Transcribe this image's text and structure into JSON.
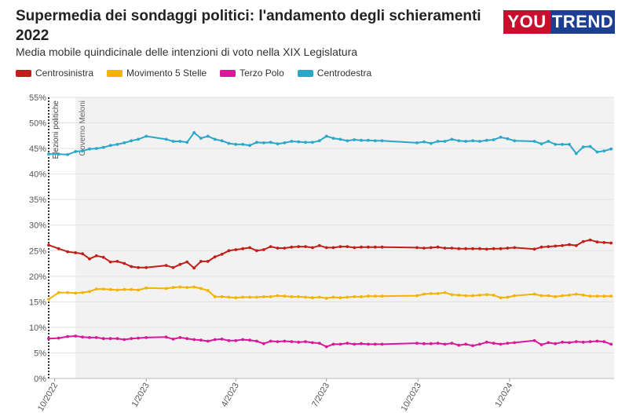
{
  "header": {
    "title": "Supermedia dei sondaggi politici: l'andamento degli schieramenti 2022",
    "subtitle": "Media mobile quindicinale delle intenzioni di voto nella XIX Legislatura",
    "logo_left": "YOU",
    "logo_right": "TREND"
  },
  "colors": {
    "centrosinistra": "#c0201a",
    "movimento5stelle": "#f2b400",
    "terzopolo": "#d9189b",
    "centrodestra": "#2aa7c9",
    "shade": "#f2f2f2",
    "grid": "#e2e2e2"
  },
  "chart_data": {
    "type": "line",
    "ylim": [
      0,
      55
    ],
    "yticks": [
      "0%",
      "5%",
      "10%",
      "15%",
      "20%",
      "25%",
      "30%",
      "35%",
      "40%",
      "45%",
      "50%",
      "55%"
    ],
    "xticks": [
      "10/2022",
      "1/2023",
      "4/2023",
      "7/2023",
      "10/2023",
      "1/2024"
    ],
    "xlim": [
      "2022-09-25",
      "2024-04-15"
    ],
    "grid": true,
    "legend_position": "top-left",
    "annotations": [
      {
        "label": "Elezioni politiche",
        "date": "2022-09-25"
      },
      {
        "label": "Governo Meloni",
        "date": "2022-10-22"
      }
    ],
    "series": [
      {
        "name": "Centrosinistra",
        "color_key": "centrosinistra",
        "x": [
          "2022-09-25",
          "2022-10-05",
          "2022-10-14",
          "2022-10-22",
          "2022-10-29",
          "2022-11-05",
          "2022-11-12",
          "2022-11-19",
          "2022-11-26",
          "2022-12-03",
          "2022-12-10",
          "2022-12-17",
          "2022-12-24",
          "2023-01-01",
          "2023-01-21",
          "2023-01-28",
          "2023-02-04",
          "2023-02-11",
          "2023-02-18",
          "2023-02-25",
          "2023-03-04",
          "2023-03-11",
          "2023-03-18",
          "2023-03-25",
          "2023-04-01",
          "2023-04-08",
          "2023-04-15",
          "2023-04-22",
          "2023-04-29",
          "2023-05-06",
          "2023-05-13",
          "2023-05-20",
          "2023-05-27",
          "2023-06-03",
          "2023-06-10",
          "2023-06-17",
          "2023-06-24",
          "2023-07-01",
          "2023-07-08",
          "2023-07-15",
          "2023-07-22",
          "2023-07-29",
          "2023-08-05",
          "2023-08-12",
          "2023-08-19",
          "2023-08-26",
          "2023-09-30",
          "2023-10-07",
          "2023-10-14",
          "2023-10-21",
          "2023-10-28",
          "2023-11-04",
          "2023-11-11",
          "2023-11-18",
          "2023-11-25",
          "2023-12-02",
          "2023-12-09",
          "2023-12-16",
          "2023-12-23",
          "2023-12-30",
          "2024-01-06",
          "2024-01-26",
          "2024-02-02",
          "2024-02-09",
          "2024-02-16",
          "2024-02-23",
          "2024-03-01",
          "2024-03-08",
          "2024-03-15",
          "2024-03-22",
          "2024-03-29",
          "2024-04-05",
          "2024-04-12"
        ],
        "values": [
          26.1,
          25.4,
          24.8,
          24.6,
          24.4,
          23.4,
          24.0,
          23.7,
          22.8,
          22.9,
          22.5,
          21.9,
          21.7,
          21.7,
          22.1,
          21.7,
          22.3,
          22.8,
          21.6,
          22.9,
          22.9,
          23.8,
          24.3,
          25.0,
          25.2,
          25.4,
          25.6,
          25.0,
          25.2,
          25.8,
          25.5,
          25.5,
          25.7,
          25.8,
          25.8,
          25.6,
          26.0,
          25.6,
          25.6,
          25.8,
          25.8,
          25.6,
          25.7,
          25.7,
          25.7,
          25.7,
          25.6,
          25.5,
          25.6,
          25.7,
          25.5,
          25.5,
          25.4,
          25.4,
          25.4,
          25.4,
          25.3,
          25.4,
          25.4,
          25.5,
          25.6,
          25.3,
          25.7,
          25.8,
          25.9,
          26.0,
          26.2,
          26.0,
          26.8,
          27.1,
          26.7,
          26.6,
          26.5
        ]
      },
      {
        "name": "Movimento 5 Stelle",
        "color_key": "movimento5stelle",
        "x": [
          "2022-09-25",
          "2022-10-05",
          "2022-10-14",
          "2022-10-22",
          "2022-10-29",
          "2022-11-05",
          "2022-11-12",
          "2022-11-19",
          "2022-11-26",
          "2022-12-03",
          "2022-12-10",
          "2022-12-17",
          "2022-12-24",
          "2023-01-01",
          "2023-01-21",
          "2023-01-28",
          "2023-02-04",
          "2023-02-11",
          "2023-02-18",
          "2023-02-25",
          "2023-03-04",
          "2023-03-11",
          "2023-03-18",
          "2023-03-25",
          "2023-04-01",
          "2023-04-08",
          "2023-04-15",
          "2023-04-22",
          "2023-04-29",
          "2023-05-06",
          "2023-05-13",
          "2023-05-20",
          "2023-05-27",
          "2023-06-03",
          "2023-06-10",
          "2023-06-17",
          "2023-06-24",
          "2023-07-01",
          "2023-07-08",
          "2023-07-15",
          "2023-07-22",
          "2023-07-29",
          "2023-08-05",
          "2023-08-12",
          "2023-08-19",
          "2023-08-26",
          "2023-09-30",
          "2023-10-07",
          "2023-10-14",
          "2023-10-21",
          "2023-10-28",
          "2023-11-04",
          "2023-11-11",
          "2023-11-18",
          "2023-11-25",
          "2023-12-02",
          "2023-12-09",
          "2023-12-16",
          "2023-12-23",
          "2023-12-30",
          "2024-01-06",
          "2024-01-26",
          "2024-02-02",
          "2024-02-09",
          "2024-02-16",
          "2024-02-23",
          "2024-03-01",
          "2024-03-08",
          "2024-03-15",
          "2024-03-22",
          "2024-03-29",
          "2024-04-05",
          "2024-04-12"
        ],
        "values": [
          15.5,
          16.8,
          16.8,
          16.7,
          16.8,
          17.0,
          17.5,
          17.5,
          17.4,
          17.3,
          17.4,
          17.4,
          17.3,
          17.7,
          17.6,
          17.8,
          17.9,
          17.8,
          17.9,
          17.6,
          17.2,
          16.0,
          16.0,
          15.9,
          15.8,
          15.9,
          15.9,
          15.9,
          16.0,
          16.0,
          16.2,
          16.1,
          16.0,
          16.0,
          15.9,
          15.8,
          15.9,
          15.7,
          15.9,
          15.8,
          15.9,
          16.0,
          16.0,
          16.1,
          16.1,
          16.1,
          16.2,
          16.5,
          16.6,
          16.6,
          16.8,
          16.4,
          16.3,
          16.2,
          16.2,
          16.3,
          16.4,
          16.3,
          15.8,
          15.9,
          16.2,
          16.5,
          16.2,
          16.2,
          16.0,
          16.2,
          16.3,
          16.5,
          16.3,
          16.1,
          16.1,
          16.1,
          16.1
        ]
      },
      {
        "name": "Terzo Polo",
        "color_key": "terzopolo",
        "x": [
          "2022-09-25",
          "2022-10-05",
          "2022-10-14",
          "2022-10-22",
          "2022-10-29",
          "2022-11-05",
          "2022-11-12",
          "2022-11-19",
          "2022-11-26",
          "2022-12-03",
          "2022-12-10",
          "2022-12-17",
          "2022-12-24",
          "2023-01-01",
          "2023-01-21",
          "2023-01-28",
          "2023-02-04",
          "2023-02-11",
          "2023-02-18",
          "2023-02-25",
          "2023-03-04",
          "2023-03-11",
          "2023-03-18",
          "2023-03-25",
          "2023-04-01",
          "2023-04-08",
          "2023-04-15",
          "2023-04-22",
          "2023-04-29",
          "2023-05-06",
          "2023-05-13",
          "2023-05-20",
          "2023-05-27",
          "2023-06-03",
          "2023-06-10",
          "2023-06-17",
          "2023-06-24",
          "2023-07-01",
          "2023-07-08",
          "2023-07-15",
          "2023-07-22",
          "2023-07-29",
          "2023-08-05",
          "2023-08-12",
          "2023-08-19",
          "2023-08-26",
          "2023-09-30",
          "2023-10-07",
          "2023-10-14",
          "2023-10-21",
          "2023-10-28",
          "2023-11-04",
          "2023-11-11",
          "2023-11-18",
          "2023-11-25",
          "2023-12-02",
          "2023-12-09",
          "2023-12-16",
          "2023-12-23",
          "2023-12-30",
          "2024-01-06",
          "2024-01-26",
          "2024-02-02",
          "2024-02-09",
          "2024-02-16",
          "2024-02-23",
          "2024-03-01",
          "2024-03-08",
          "2024-03-15",
          "2024-03-22",
          "2024-03-29",
          "2024-04-05",
          "2024-04-12"
        ],
        "values": [
          7.8,
          7.9,
          8.2,
          8.3,
          8.1,
          8.0,
          8.0,
          7.8,
          7.8,
          7.8,
          7.6,
          7.8,
          7.9,
          8.0,
          8.1,
          7.7,
          8.0,
          7.8,
          7.6,
          7.5,
          7.3,
          7.6,
          7.7,
          7.4,
          7.4,
          7.6,
          7.5,
          7.3,
          6.8,
          7.3,
          7.2,
          7.3,
          7.2,
          7.1,
          7.2,
          7.0,
          6.9,
          6.2,
          6.7,
          6.7,
          6.9,
          6.7,
          6.8,
          6.7,
          6.7,
          6.7,
          6.9,
          6.8,
          6.8,
          6.9,
          6.7,
          6.9,
          6.5,
          6.7,
          6.4,
          6.7,
          7.1,
          6.9,
          6.7,
          6.9,
          7.0,
          7.4,
          6.6,
          7.0,
          6.8,
          7.1,
          7.0,
          7.2,
          7.1,
          7.2,
          7.3,
          7.2,
          6.7
        ]
      },
      {
        "name": "Centrodestra",
        "color_key": "centrodestra",
        "x": [
          "2022-09-25",
          "2022-10-05",
          "2022-10-14",
          "2022-10-22",
          "2022-10-29",
          "2022-11-05",
          "2022-11-12",
          "2022-11-19",
          "2022-11-26",
          "2022-12-03",
          "2022-12-10",
          "2022-12-17",
          "2022-12-24",
          "2023-01-01",
          "2023-01-21",
          "2023-01-28",
          "2023-02-04",
          "2023-02-11",
          "2023-02-18",
          "2023-02-25",
          "2023-03-04",
          "2023-03-11",
          "2023-03-18",
          "2023-03-25",
          "2023-04-01",
          "2023-04-08",
          "2023-04-15",
          "2023-04-22",
          "2023-04-29",
          "2023-05-06",
          "2023-05-13",
          "2023-05-20",
          "2023-05-27",
          "2023-06-03",
          "2023-06-10",
          "2023-06-17",
          "2023-06-24",
          "2023-07-01",
          "2023-07-08",
          "2023-07-15",
          "2023-07-22",
          "2023-07-29",
          "2023-08-05",
          "2023-08-12",
          "2023-08-19",
          "2023-08-26",
          "2023-09-30",
          "2023-10-07",
          "2023-10-14",
          "2023-10-21",
          "2023-10-28",
          "2023-11-04",
          "2023-11-11",
          "2023-11-18",
          "2023-11-25",
          "2023-12-02",
          "2023-12-09",
          "2023-12-16",
          "2023-12-23",
          "2023-12-30",
          "2024-01-06",
          "2024-01-26",
          "2024-02-02",
          "2024-02-09",
          "2024-02-16",
          "2024-02-23",
          "2024-03-01",
          "2024-03-08",
          "2024-03-15",
          "2024-03-22",
          "2024-03-29",
          "2024-04-05",
          "2024-04-12"
        ],
        "values": [
          43.9,
          43.9,
          43.8,
          44.4,
          44.5,
          44.9,
          45.0,
          45.2,
          45.6,
          45.8,
          46.1,
          46.5,
          46.8,
          47.4,
          46.8,
          46.4,
          46.4,
          46.2,
          48.1,
          47.0,
          47.4,
          46.8,
          46.5,
          46.0,
          45.8,
          45.8,
          45.6,
          46.2,
          46.1,
          46.2,
          45.9,
          46.1,
          46.4,
          46.3,
          46.2,
          46.2,
          46.5,
          47.4,
          47.0,
          46.8,
          46.5,
          46.7,
          46.6,
          46.6,
          46.5,
          46.5,
          46.1,
          46.3,
          46.0,
          46.4,
          46.4,
          46.8,
          46.5,
          46.4,
          46.5,
          46.4,
          46.6,
          46.7,
          47.2,
          46.9,
          46.5,
          46.4,
          45.9,
          46.4,
          45.8,
          45.8,
          45.8,
          44.0,
          45.3,
          45.4,
          44.3,
          44.5,
          44.9
        ]
      }
    ]
  }
}
